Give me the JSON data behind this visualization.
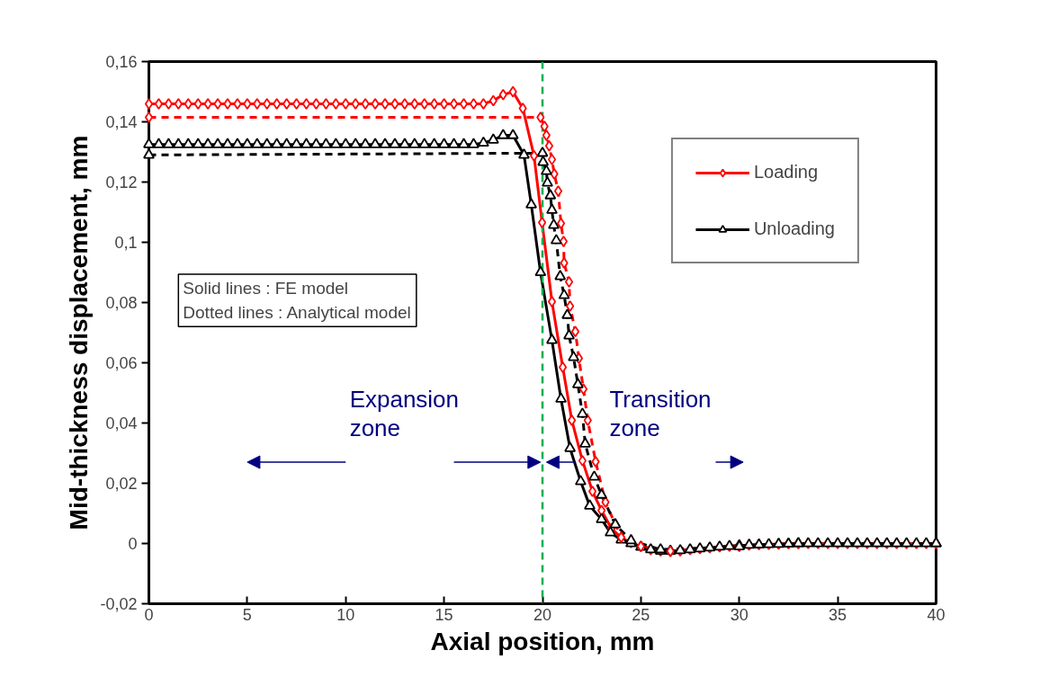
{
  "chart_data": {
    "type": "line",
    "xlabel": "Axial position, mm",
    "ylabel": "Mid-thickness displacement, mm",
    "xlim": [
      0,
      40
    ],
    "xticks": [
      0,
      5,
      10,
      15,
      20,
      25,
      30,
      35,
      40
    ],
    "ylim": [
      -0.02,
      0.16
    ],
    "yticks": [
      {
        "value": -0.02,
        "label": "-0,02"
      },
      {
        "value": 0,
        "label": "0"
      },
      {
        "value": 0.02,
        "label": "0,02"
      },
      {
        "value": 0.04,
        "label": "0,04"
      },
      {
        "value": 0.06,
        "label": "0,06"
      },
      {
        "value": 0.08,
        "label": "0,08"
      },
      {
        "value": 0.1,
        "label": "0,1"
      },
      {
        "value": 0.12,
        "label": "0,12"
      },
      {
        "value": 0.14,
        "label": "0,14"
      },
      {
        "value": 0.16,
        "label": "0,16"
      }
    ],
    "grid": false,
    "legend": "top right",
    "series": [
      {
        "name": "Loading",
        "color": "#ff0000",
        "marker": "diamond",
        "line_style": "solid",
        "x": [
          0,
          0.5,
          1,
          1.5,
          2,
          2.5,
          3,
          3.5,
          4,
          4.5,
          5,
          5.5,
          6,
          6.5,
          7,
          7.5,
          8,
          8.5,
          9,
          9.5,
          10,
          10.5,
          11,
          11.5,
          12,
          12.5,
          13,
          13.5,
          14,
          14.5,
          15,
          15.5,
          16,
          16.5,
          17,
          17.5,
          18,
          18.5,
          19,
          19.57,
          19.98,
          20.48,
          21.03,
          21.49,
          22.03,
          22.54,
          23,
          23.5,
          24,
          24.5,
          25,
          25.5,
          26,
          26.5,
          27,
          27.5,
          28,
          28.5,
          29,
          29.5,
          30,
          30.5,
          31,
          31.5,
          32,
          32.5,
          33,
          33.5,
          34,
          34.5,
          35,
          35.5,
          36,
          36.5,
          37,
          37.5,
          38,
          38.5,
          39,
          39.5,
          40
        ],
        "values": [
          0.146,
          0.146,
          0.146,
          0.146,
          0.146,
          0.146,
          0.146,
          0.146,
          0.146,
          0.146,
          0.146,
          0.146,
          0.146,
          0.146,
          0.146,
          0.146,
          0.146,
          0.146,
          0.146,
          0.146,
          0.146,
          0.146,
          0.146,
          0.146,
          0.146,
          0.146,
          0.146,
          0.146,
          0.146,
          0.146,
          0.146,
          0.146,
          0.146,
          0.146,
          0.146,
          0.147,
          0.149,
          0.15,
          0.1445,
          0.1287,
          0.1066,
          0.0803,
          0.0585,
          0.0409,
          0.0275,
          0.0173,
          0.011,
          0.005,
          0.002,
          0.0003,
          -0.001,
          -0.002,
          -0.0025,
          -0.0027,
          -0.0025,
          -0.002,
          -0.0017,
          -0.0014,
          -0.0011,
          -0.0009,
          -0.0007,
          -0.0005,
          -0.0004,
          -0.0003,
          -0.0002,
          -0.0001,
          0,
          0,
          0,
          0,
          0,
          0,
          0,
          0,
          0,
          0,
          0,
          0,
          0,
          0,
          0
        ]
      },
      {
        "name": "Unloading",
        "color": "#000000",
        "marker": "triangle",
        "line_style": "solid",
        "x": [
          0,
          0.5,
          1,
          1.5,
          2,
          2.5,
          3,
          3.5,
          4,
          4.5,
          5,
          5.5,
          6,
          6.5,
          7,
          7.5,
          8,
          8.5,
          9,
          9.5,
          10,
          10.5,
          11,
          11.5,
          12,
          12.5,
          13,
          13.5,
          14,
          14.5,
          15,
          15.5,
          16,
          16.5,
          17,
          17.5,
          18,
          18.5,
          19.06,
          19.43,
          19.9,
          20.48,
          20.94,
          21.4,
          21.94,
          22.4,
          23,
          23.45,
          24,
          24.5,
          25,
          25.5,
          26,
          26.5,
          27,
          27.5,
          28,
          28.5,
          29,
          29.5,
          30,
          30.5,
          31,
          31.5,
          32,
          32.5,
          33,
          33.5,
          34,
          34.5,
          35,
          35.5,
          36,
          36.5,
          37,
          37.5,
          38,
          38.5,
          39,
          39.5,
          40
        ],
        "values": [
          0.1325,
          0.1325,
          0.1325,
          0.1325,
          0.1325,
          0.1325,
          0.1325,
          0.1325,
          0.1325,
          0.1325,
          0.1325,
          0.1325,
          0.1325,
          0.1325,
          0.1325,
          0.1325,
          0.1325,
          0.1325,
          0.1325,
          0.1325,
          0.1325,
          0.1325,
          0.1325,
          0.1325,
          0.1325,
          0.1325,
          0.1325,
          0.1325,
          0.1325,
          0.1325,
          0.1325,
          0.1325,
          0.1325,
          0.1325,
          0.133,
          0.134,
          0.1355,
          0.1355,
          0.129,
          0.1125,
          0.09,
          0.0675,
          0.048,
          0.0316,
          0.0206,
          0.0125,
          0.008,
          0.0036,
          0.0012,
          0,
          -0.0012,
          -0.002,
          -0.0025,
          -0.0025,
          -0.0023,
          -0.002,
          -0.0017,
          -0.0014,
          -0.0011,
          -0.0009,
          -0.0007,
          -0.0005,
          -0.0004,
          -0.0003,
          -0.0002,
          -0.0001,
          0,
          0,
          0,
          0,
          0,
          0,
          0,
          0,
          0,
          0,
          0,
          0,
          0,
          0,
          0
        ]
      },
      {
        "color": "#ff0000",
        "marker": "diamond",
        "line_style": "dashed",
        "x": [
          0,
          19.9,
          20.1,
          20.2,
          20.34,
          20.48,
          20.6,
          20.8,
          20.94,
          21.07,
          21.1,
          21.35,
          21.4,
          21.67,
          21.85,
          22.08,
          22.3,
          22.7,
          23.2,
          24,
          25,
          26.5,
          30,
          33,
          40
        ],
        "values": [
          0.1415,
          0.1415,
          0.1385,
          0.1355,
          0.132,
          0.1275,
          0.1227,
          0.117,
          0.1063,
          0.1003,
          0.0931,
          0.0869,
          0.0788,
          0.0704,
          0.0615,
          0.0513,
          0.0409,
          0.0272,
          0.0137,
          0.002,
          -0.001,
          -0.0025,
          -0.001,
          0,
          0
        ]
      },
      {
        "color": "#000000",
        "marker": "triangle",
        "line_style": "dashed",
        "x": [
          0,
          20.0,
          20.03,
          20.2,
          20.25,
          20.4,
          20.48,
          20.57,
          20.7,
          20.9,
          21.1,
          21.26,
          21.35,
          21.58,
          21.8,
          22.03,
          22.17,
          22.63,
          23.0,
          23.7,
          24.5,
          26,
          30,
          33,
          40
        ],
        "values": [
          0.129,
          0.1296,
          0.1266,
          0.1236,
          0.1197,
          0.1155,
          0.1107,
          0.1057,
          0.1006,
          0.0887,
          0.0824,
          0.0758,
          0.069,
          0.0618,
          0.0528,
          0.043,
          0.0331,
          0.0221,
          0.0161,
          0.0063,
          0.001,
          -0.002,
          -0.001,
          0,
          0
        ]
      }
    ],
    "ref_lines": [
      {
        "axis": "x",
        "value": 20,
        "color": "#00b050",
        "line_style": "dashed"
      }
    ],
    "annotations": [
      "Solid lines : FE model\nDotted lines : Analytical model",
      "Expansion\nzone",
      "Transition\nzone"
    ]
  }
}
